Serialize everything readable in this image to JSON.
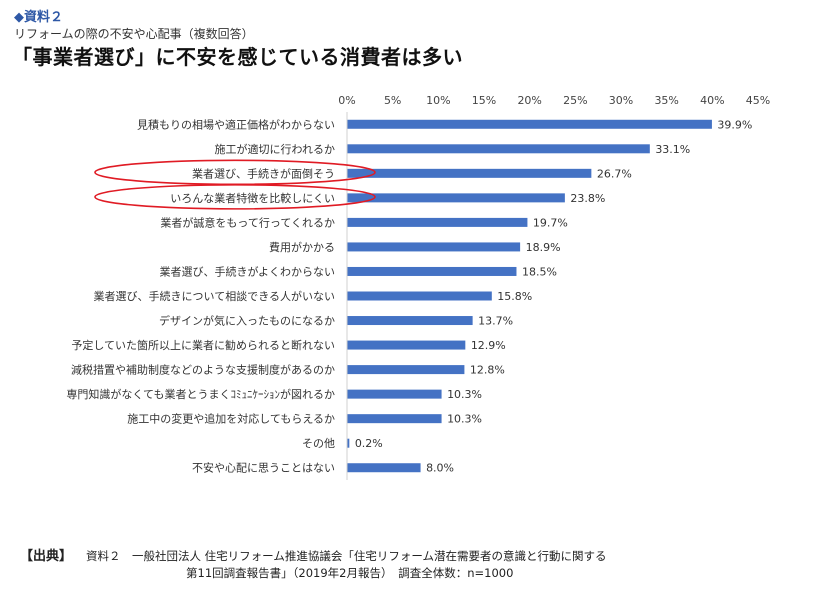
{
  "header": {
    "tag": "◆資料２",
    "subtitle": "リフォームの際の不安や心配事（複数回答）",
    "headline": "「事業者選び」に不安を感じている消費者は多い"
  },
  "source": {
    "tag": "【出典】",
    "line1": "資料２　一般社団法人 住宅リフォーム推進協議会「住宅リフォーム潜在需要者の意識と行動に関する",
    "line2": "第11回調査報告書」（2019年2月報告）　調査全体数：n=1000"
  },
  "colors": {
    "bar": "#4472c4",
    "highlight": "#e01b24",
    "axis": "#d0d0d0"
  },
  "chart_data": {
    "type": "bar",
    "orientation": "horizontal",
    "title": "",
    "xlabel": "",
    "ylabel": "",
    "xlim": [
      0,
      45
    ],
    "ticks": [
      "0%",
      "5%",
      "10%",
      "15%",
      "20%",
      "25%",
      "30%",
      "35%",
      "40%",
      "45%"
    ],
    "categories": [
      "見積もりの相場や適正価格がわからない",
      "施工が適切に行われるか",
      "業者選び、手続きが面倒そう",
      "いろんな業者特徴を比較しにくい",
      "業者が誠意をもって行ってくれるか",
      "費用がかかる",
      "業者選び、手続きがよくわからない",
      "業者選び、手続きについて相談できる人がいない",
      "デザインが気に入ったものになるか",
      "予定していた箇所以上に業者に勧められると断れない",
      "減税措置や補助制度などのような支援制度があるのか",
      "専門知識がなくても業者とうまくｺﾐｭﾆｹｰｼｮﾝが図れるか",
      "施工中の変更や追加を対応してもらえるか",
      "その他",
      "不安や心配に思うことはない"
    ],
    "values": [
      39.9,
      33.1,
      26.7,
      23.8,
      19.7,
      18.9,
      18.5,
      15.8,
      13.7,
      12.9,
      12.8,
      10.3,
      10.3,
      0.2,
      8.0
    ],
    "value_labels": [
      "39.9%",
      "33.1%",
      "26.7%",
      "23.8%",
      "19.7%",
      "18.9%",
      "18.5%",
      "15.8%",
      "13.7%",
      "12.9%",
      "12.8%",
      "10.3%",
      "10.3%",
      "0.2%",
      "8.0%"
    ],
    "highlighted": [
      2,
      3
    ]
  }
}
